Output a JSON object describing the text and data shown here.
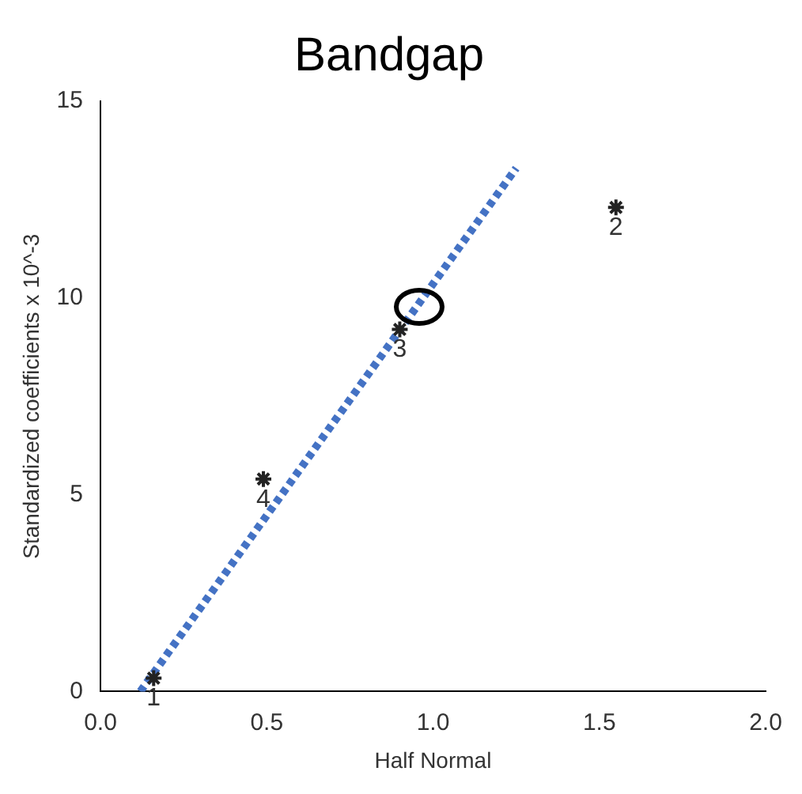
{
  "chart_data": {
    "type": "scatter",
    "title": "Bandgap",
    "xlabel": "Half Normal",
    "ylabel": "Standardized coefficients x 10^-3",
    "series": [
      {
        "color": "#222222",
        "x": [
          0.16,
          1.55,
          0.9,
          0.49
        ],
        "values": [
          0.34,
          12.3,
          9.2,
          5.4
        ],
        "marker": "cross"
      },
      {
        "type": "line",
        "color": "#4472c4",
        "x": [
          0.12,
          1.25
        ],
        "values": [
          0,
          13.3
        ],
        "marker": "none",
        "line_style": "dotted"
      }
    ],
    "annotations": [
      {
        "text": "1",
        "x": 0.16,
        "y": 0.34
      },
      {
        "text": "2",
        "x": 1.55,
        "y": 12.3
      },
      {
        "text": "3",
        "x": 0.9,
        "y": 9.2
      },
      {
        "text": "4",
        "x": 0.49,
        "y": 5.4
      }
    ],
    "xlim": [
      0,
      2
    ],
    "xticks": [
      {
        "value": 0,
        "label": "0.0"
      },
      {
        "value": 0.5,
        "label": "0.5"
      },
      {
        "value": 1,
        "label": "1.0"
      },
      {
        "value": 1.5,
        "label": "1.5"
      },
      {
        "value": 2,
        "label": "2.0"
      }
    ],
    "ylim": [
      0,
      15
    ],
    "yticks": [
      0,
      5,
      10,
      15
    ],
    "grid": false,
    "legend": false
  }
}
